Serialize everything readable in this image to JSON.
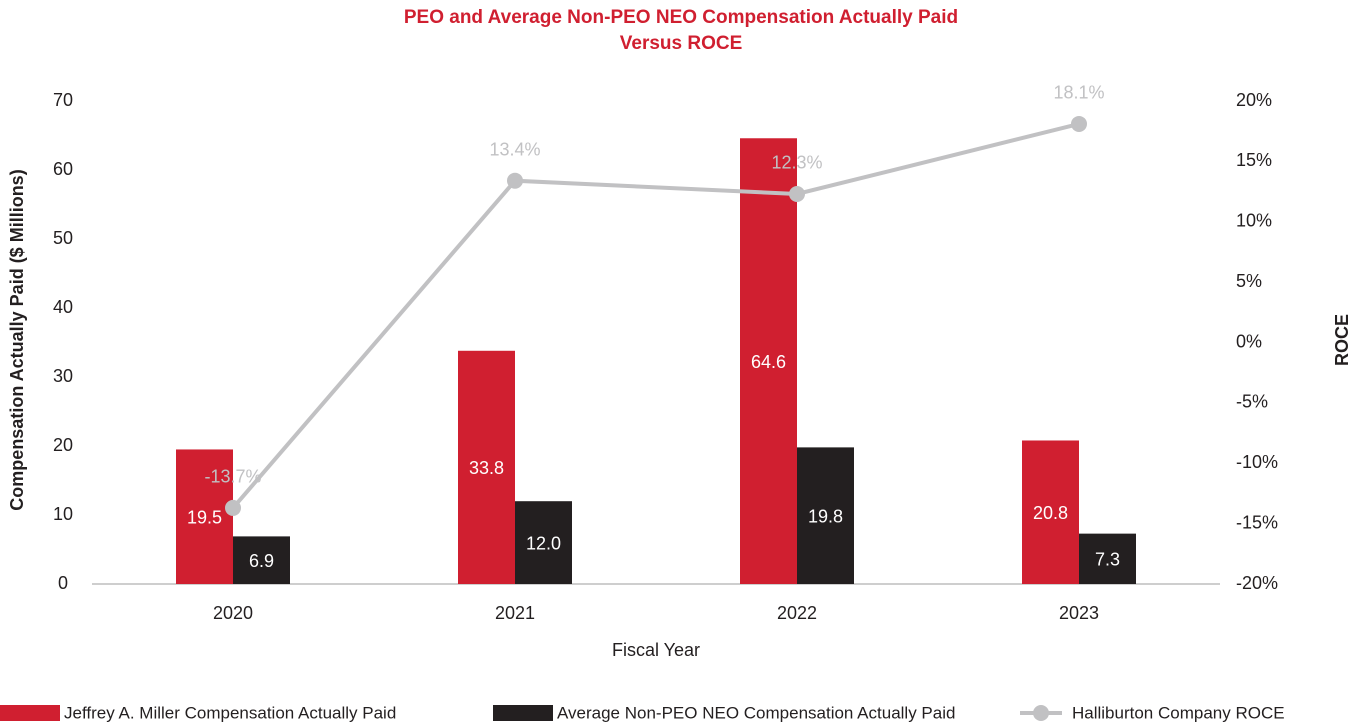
{
  "chart_data": {
    "type": "bar",
    "title": [
      "PEO and Average Non-PEO NEO Compensation Actually Paid",
      "Versus ROCE"
    ],
    "x_label": "Fiscal Year",
    "y_label": "Compensation Actually Paid ($ Millions)",
    "y2_label": "ROCE",
    "categories": [
      "2020",
      "2021",
      "2022",
      "2023"
    ],
    "ylim": [
      0,
      70
    ],
    "yticks": [
      0,
      10,
      20,
      30,
      40,
      50,
      60,
      70
    ],
    "y2lim": [
      -20,
      20
    ],
    "y2ticks": [
      {
        "value": -20,
        "label": "-20%"
      },
      {
        "value": -15,
        "label": "-15%"
      },
      {
        "value": -10,
        "label": "-10%"
      },
      {
        "value": -5,
        "label": "-5%"
      },
      {
        "value": 0,
        "label": "0%"
      },
      {
        "value": 5,
        "label": "5%"
      },
      {
        "value": 10,
        "label": "10%"
      },
      {
        "value": 15,
        "label": "15%"
      },
      {
        "value": 20,
        "label": "20%"
      }
    ],
    "grid": false,
    "legend": "bottom",
    "series": [
      {
        "name": "Jeffrey A. Miller Compensation Actually Paid",
        "type": "bar",
        "color": "#d01f30",
        "values": [
          19.5,
          33.8,
          64.6,
          20.8
        ]
      },
      {
        "name": "Average Non-PEO NEO Compensation Actually Paid",
        "type": "bar",
        "color": "#231f20",
        "values": [
          6.9,
          12.0,
          19.8,
          7.3
        ],
        "value_labels": [
          "6.9",
          "12.0",
          "19.8",
          "7.3"
        ]
      },
      {
        "name": "Halliburton Company ROCE",
        "type": "line",
        "axis": "y2",
        "color": "#c1c1c3",
        "values": [
          -13.7,
          13.4,
          12.3,
          18.1
        ],
        "value_labels": [
          "-13.7%",
          "13.4%",
          "12.3%",
          "18.1%"
        ]
      }
    ]
  }
}
